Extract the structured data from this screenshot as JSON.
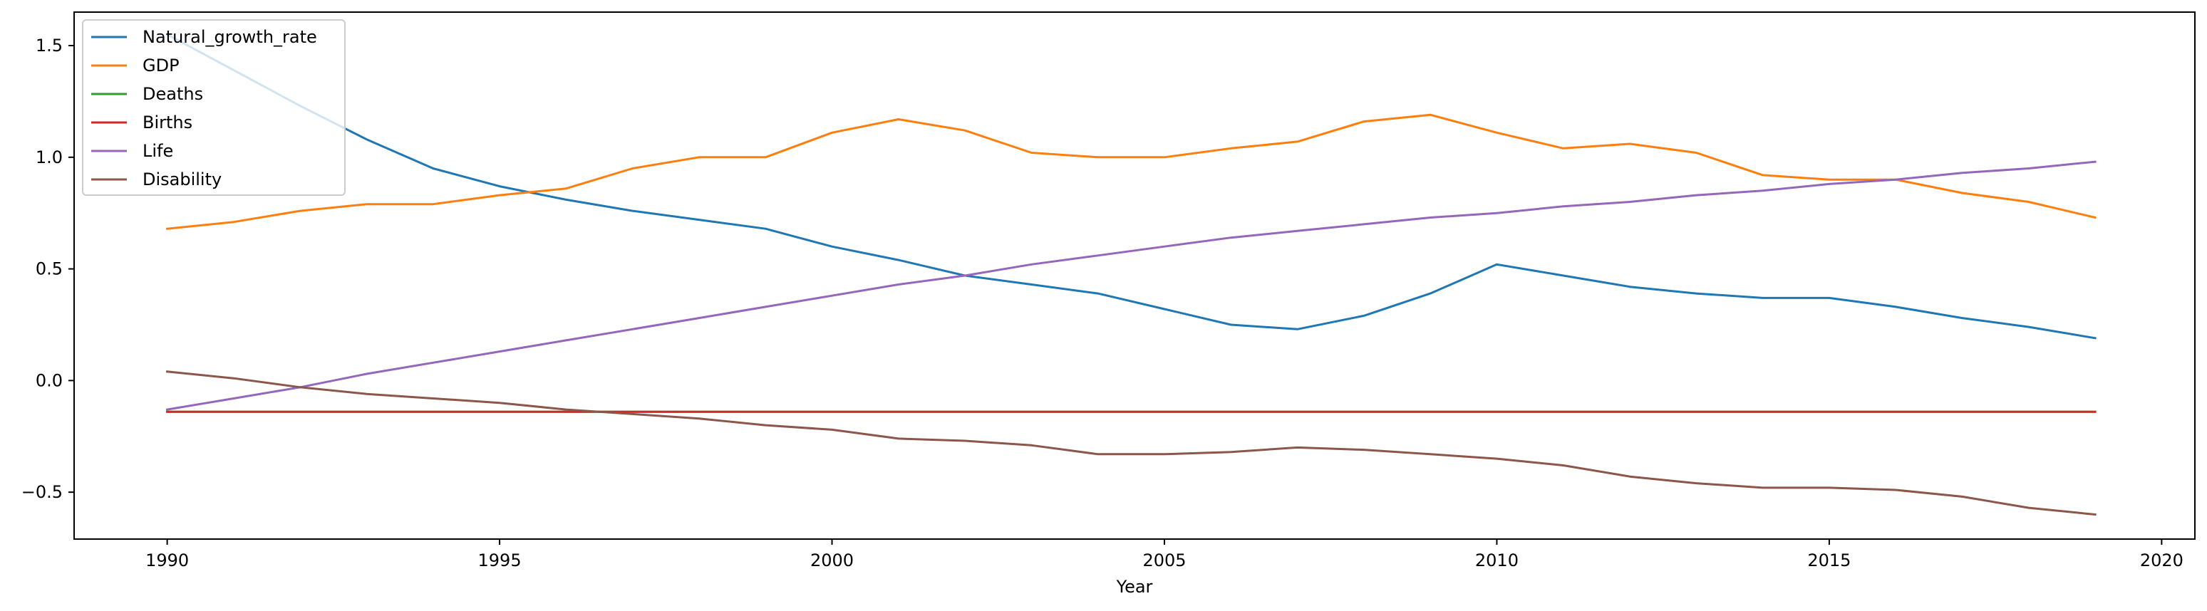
{
  "chart_data": {
    "type": "line",
    "title": "",
    "xlabel": "Year",
    "ylabel": "",
    "xlim": [
      1988.6,
      2020.5
    ],
    "ylim": [
      -0.71,
      1.65
    ],
    "xticks": [
      1990,
      1995,
      2000,
      2005,
      2010,
      2015,
      2020
    ],
    "yticks": [
      -0.5,
      0.0,
      0.5,
      1.0,
      1.5
    ],
    "ytick_labels": [
      "−0.5",
      "0.0",
      "0.5",
      "1.0",
      "1.5"
    ],
    "grid": false,
    "legend_position": "top-left",
    "x": [
      1990,
      1991,
      1992,
      1993,
      1994,
      1995,
      1996,
      1997,
      1998,
      1999,
      2000,
      2001,
      2002,
      2003,
      2004,
      2005,
      2006,
      2007,
      2008,
      2009,
      2010,
      2011,
      2012,
      2013,
      2014,
      2015,
      2016,
      2017,
      2018,
      2019
    ],
    "series": [
      {
        "name": "Natural_growth_rate",
        "color": "#1f77b4",
        "values": [
          1.55,
          1.39,
          1.23,
          1.08,
          0.95,
          0.87,
          0.81,
          0.76,
          0.72,
          0.68,
          0.6,
          0.54,
          0.47,
          0.43,
          0.39,
          0.32,
          0.25,
          0.23,
          0.29,
          0.39,
          0.52,
          0.47,
          0.42,
          0.39,
          0.37,
          0.37,
          0.33,
          0.28,
          0.24,
          0.19
        ]
      },
      {
        "name": "GDP",
        "color": "#ff7f0e",
        "values": [
          0.68,
          0.71,
          0.76,
          0.79,
          0.79,
          0.83,
          0.86,
          0.95,
          1.0,
          1.0,
          1.11,
          1.17,
          1.12,
          1.02,
          1.0,
          1.0,
          1.04,
          1.07,
          1.16,
          1.19,
          1.11,
          1.04,
          1.06,
          1.02,
          0.92,
          0.9,
          0.9,
          0.84,
          0.8,
          0.73
        ]
      },
      {
        "name": "Deaths",
        "color": "#2ca02c",
        "values": [
          -0.14,
          -0.14,
          -0.14,
          -0.14,
          -0.14,
          -0.14,
          -0.14,
          -0.14,
          -0.14,
          -0.14,
          -0.14,
          -0.14,
          -0.14,
          -0.14,
          -0.14,
          -0.14,
          -0.14,
          -0.14,
          -0.14,
          -0.14,
          -0.14,
          -0.14,
          -0.14,
          -0.14,
          -0.14,
          -0.14,
          -0.14,
          -0.14,
          -0.14,
          -0.14
        ]
      },
      {
        "name": "Births",
        "color": "#d62728",
        "values": [
          -0.14,
          -0.14,
          -0.14,
          -0.14,
          -0.14,
          -0.14,
          -0.14,
          -0.14,
          -0.14,
          -0.14,
          -0.14,
          -0.14,
          -0.14,
          -0.14,
          -0.14,
          -0.14,
          -0.14,
          -0.14,
          -0.14,
          -0.14,
          -0.14,
          -0.14,
          -0.14,
          -0.14,
          -0.14,
          -0.14,
          -0.14,
          -0.14,
          -0.14,
          -0.14
        ]
      },
      {
        "name": "Life",
        "color": "#9467bd",
        "values": [
          -0.13,
          -0.08,
          -0.03,
          0.03,
          0.08,
          0.13,
          0.18,
          0.23,
          0.28,
          0.33,
          0.38,
          0.43,
          0.47,
          0.52,
          0.56,
          0.6,
          0.64,
          0.67,
          0.7,
          0.73,
          0.75,
          0.78,
          0.8,
          0.83,
          0.85,
          0.88,
          0.9,
          0.93,
          0.95,
          0.98
        ]
      },
      {
        "name": "Disability",
        "color": "#8c564b",
        "values": [
          0.04,
          0.01,
          -0.03,
          -0.06,
          -0.08,
          -0.1,
          -0.13,
          -0.15,
          -0.17,
          -0.2,
          -0.22,
          -0.26,
          -0.27,
          -0.29,
          -0.33,
          -0.33,
          -0.32,
          -0.3,
          -0.31,
          -0.33,
          -0.35,
          -0.38,
          -0.43,
          -0.46,
          -0.48,
          -0.48,
          -0.49,
          -0.52,
          -0.57,
          -0.6
        ]
      }
    ]
  }
}
